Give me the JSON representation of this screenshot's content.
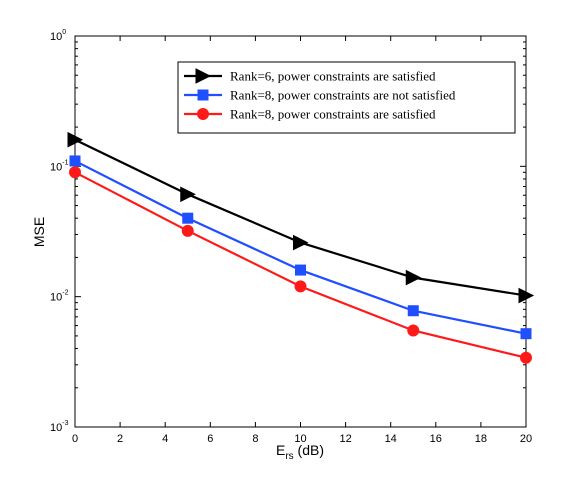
{
  "chart_data": {
    "type": "line",
    "xlabel": "E",
    "xlabel_sub": "rs",
    "xlabel_unit": " (dB)",
    "ylabel": "MSE",
    "x_scale": "linear",
    "y_scale": "log",
    "xlim": [
      0,
      20
    ],
    "ylim": [
      0.001,
      1
    ],
    "x_ticks": [
      "0",
      "2",
      "4",
      "6",
      "8",
      "10",
      "12",
      "14",
      "16",
      "18",
      "20"
    ],
    "y_ticks": [
      {
        "base": "10",
        "exp": "-3",
        "value": 0.001
      },
      {
        "base": "10",
        "exp": "-2",
        "value": 0.01
      },
      {
        "base": "10",
        "exp": "-1",
        "value": 0.1
      },
      {
        "base": "10",
        "exp": "0",
        "value": 1
      }
    ],
    "grid": false,
    "legend_position": "top-right",
    "series": [
      {
        "name": "Rank=6, power constraints are satisfied",
        "color": "#000000",
        "marker": "triangle-right",
        "x": [
          0,
          5,
          10,
          15,
          20
        ],
        "y": [
          0.16,
          0.061,
          0.026,
          0.014,
          0.0102
        ]
      },
      {
        "name": "Rank=8, power constraints are not satisfied",
        "color": "#1f4fff",
        "marker": "square",
        "x": [
          0,
          5,
          10,
          15,
          20
        ],
        "y": [
          0.11,
          0.04,
          0.016,
          0.0078,
          0.0052
        ]
      },
      {
        "name": "Rank=8, power constraints are satisfied",
        "color": "#ff1a1a",
        "marker": "circle",
        "x": [
          0,
          5,
          10,
          15,
          20
        ],
        "y": [
          0.09,
          0.032,
          0.012,
          0.0055,
          0.0034
        ]
      }
    ]
  }
}
